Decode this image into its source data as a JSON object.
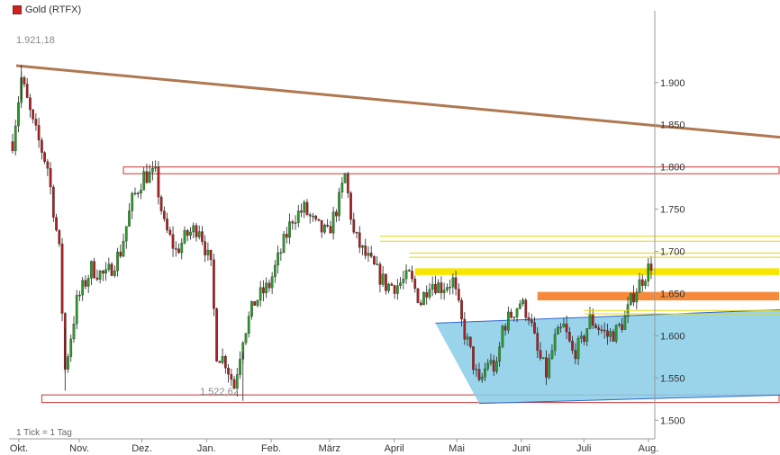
{
  "chart_data": {
    "type": "candlestick",
    "legend": {
      "label": "Gold (RTFX)",
      "color": "#cc2222"
    },
    "footnote": "1 Tick = 1 Tag",
    "x_ticks": [
      "Okt.",
      "Nov.",
      "Dez.",
      "Jan.",
      "Feb.",
      "März",
      "April",
      "Mai",
      "Juni",
      "Juli",
      "Aug."
    ],
    "y_ticks": [
      "1.900",
      "1.850",
      "1.800",
      "1.750",
      "1.700",
      "1.650",
      "1.600",
      "1.550",
      "1.500"
    ],
    "y_tick_values": [
      1900,
      1850,
      1800,
      1750,
      1700,
      1650,
      1600,
      1550,
      1500
    ],
    "ylim": [
      1478,
      1985
    ],
    "annotations": {
      "high_label": "1.921,18",
      "low_label": "1.522,62"
    },
    "price_path": [
      [
        0,
        1830
      ],
      [
        3,
        1905
      ],
      [
        7,
        1850
      ],
      [
        12,
        1800
      ],
      [
        16,
        1700
      ],
      [
        18,
        1560
      ],
      [
        22,
        1640
      ],
      [
        27,
        1680
      ],
      [
        32,
        1670
      ],
      [
        37,
        1700
      ],
      [
        41,
        1760
      ],
      [
        45,
        1790
      ],
      [
        49,
        1790
      ],
      [
        52,
        1730
      ],
      [
        56,
        1700
      ],
      [
        60,
        1720
      ],
      [
        64,
        1730
      ],
      [
        68,
        1680
      ],
      [
        70,
        1580
      ],
      [
        73,
        1570
      ],
      [
        76,
        1540
      ],
      [
        79,
        1600
      ],
      [
        83,
        1640
      ],
      [
        88,
        1660
      ],
      [
        92,
        1700
      ],
      [
        96,
        1740
      ],
      [
        100,
        1750
      ],
      [
        104,
        1730
      ],
      [
        108,
        1720
      ],
      [
        112,
        1760
      ],
      [
        114,
        1790
      ],
      [
        117,
        1720
      ],
      [
        120,
        1700
      ],
      [
        124,
        1680
      ],
      [
        128,
        1660
      ],
      [
        132,
        1660
      ],
      [
        136,
        1670
      ],
      [
        140,
        1640
      ],
      [
        143,
        1665
      ],
      [
        147,
        1658
      ],
      [
        151,
        1665
      ],
      [
        154,
        1615
      ],
      [
        157,
        1580
      ],
      [
        160,
        1540
      ],
      [
        163,
        1570
      ],
      [
        166,
        1560
      ],
      [
        168,
        1610
      ],
      [
        171,
        1625
      ],
      [
        174,
        1640
      ],
      [
        177,
        1625
      ],
      [
        180,
        1580
      ],
      [
        183,
        1555
      ],
      [
        186,
        1595
      ],
      [
        189,
        1610
      ],
      [
        192,
        1580
      ],
      [
        195,
        1590
      ],
      [
        198,
        1620
      ],
      [
        201,
        1610
      ],
      [
        204,
        1600
      ],
      [
        207,
        1605
      ],
      [
        210,
        1620
      ],
      [
        213,
        1650
      ],
      [
        216,
        1668
      ],
      [
        219,
        1685
      ]
    ],
    "trendlines": [
      {
        "name": "downtrend",
        "color": "#b07850",
        "from": [
          0,
          1920
        ],
        "to": [
          999,
          1598
        ]
      }
    ],
    "channel": {
      "color": "#87cde8",
      "edge": "#3366cc",
      "lower_from": [
        160,
        1520
      ],
      "lower_to": [
        999,
        1600
      ],
      "upper_from": [
        145,
        1615
      ],
      "upper_to": [
        999,
        1730
      ]
    },
    "zones": [
      {
        "name": "resistance-1800",
        "low": 1792,
        "high": 1800,
        "from": 38,
        "color": "#cc3333",
        "filled": false
      },
      {
        "name": "support-1525",
        "low": 1521,
        "high": 1530,
        "from": 10,
        "color": "#cc3333",
        "filled": false
      },
      {
        "name": "yellow-zone-1680",
        "low": 1672,
        "high": 1680,
        "from": 138,
        "color": "#f6e600",
        "filled": true
      },
      {
        "name": "orange-zone-1648",
        "low": 1642,
        "high": 1652,
        "from": 180,
        "color": "#f58a3a",
        "filled": true
      }
    ],
    "lines": [
      {
        "name": "yellow-line-1718",
        "value": 1718,
        "from": 126,
        "color": "#e8d800"
      },
      {
        "name": "yellow-line-1712",
        "value": 1712,
        "from": 126,
        "color": "#e8d800"
      },
      {
        "name": "yellow-line-1698",
        "value": 1698,
        "from": 136,
        "color": "#e8d800"
      },
      {
        "name": "yellow-line-1693",
        "value": 1693,
        "from": 136,
        "color": "#e8d800"
      },
      {
        "name": "yellow-line-1630",
        "value": 1630,
        "from": 196,
        "color": "#e8d800"
      },
      {
        "name": "yellow-line-1626",
        "value": 1626,
        "from": 196,
        "color": "#e8d800"
      }
    ],
    "grid": false,
    "up_color": "#2a9a2a",
    "down_color": "#aa2020"
  }
}
